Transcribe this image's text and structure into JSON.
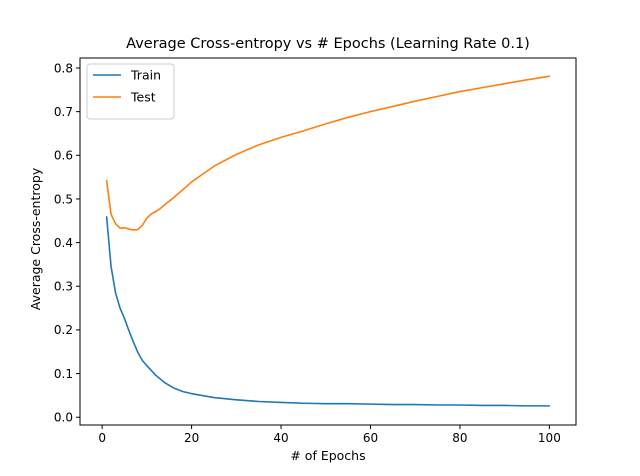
{
  "chart_data": {
    "type": "line",
    "title": "Average Cross-entropy vs # Epochs (Learning Rate 0.1)",
    "xlabel": "# of Epochs",
    "ylabel": "Average Cross-entropy",
    "xlim": [
      -4.95,
      105.95
    ],
    "ylim": [
      -0.0178,
      0.8229
    ],
    "xticks": [
      0,
      20,
      40,
      60,
      80,
      100
    ],
    "yticks": [
      0.0,
      0.1,
      0.2,
      0.3,
      0.4,
      0.5,
      0.6,
      0.7,
      0.8
    ],
    "xtick_labels": [
      "0",
      "20",
      "40",
      "60",
      "80",
      "100"
    ],
    "ytick_labels": [
      "0.0",
      "0.1",
      "0.2",
      "0.3",
      "0.4",
      "0.5",
      "0.6",
      "0.7",
      "0.8"
    ],
    "legend_position": "top-left",
    "grid": false,
    "series": [
      {
        "name": "Train",
        "color": "#1f77b4",
        "x": [
          1,
          2,
          3,
          4,
          5,
          6,
          7,
          8,
          9,
          10,
          12,
          14,
          16,
          18,
          20,
          25,
          30,
          35,
          40,
          45,
          50,
          55,
          60,
          65,
          70,
          75,
          80,
          85,
          90,
          95,
          100
        ],
        "y": [
          0.459,
          0.345,
          0.285,
          0.25,
          0.226,
          0.198,
          0.172,
          0.148,
          0.13,
          0.118,
          0.096,
          0.079,
          0.067,
          0.059,
          0.054,
          0.045,
          0.04,
          0.036,
          0.034,
          0.032,
          0.031,
          0.031,
          0.03,
          0.029,
          0.029,
          0.028,
          0.028,
          0.027,
          0.027,
          0.026,
          0.026
        ]
      },
      {
        "name": "Test",
        "color": "#ff7f0e",
        "x": [
          1,
          2,
          3,
          4,
          5,
          6,
          7,
          8,
          9,
          10,
          11,
          12,
          13,
          14,
          16,
          18,
          20,
          25,
          30,
          35,
          40,
          45,
          50,
          55,
          60,
          65,
          70,
          75,
          80,
          85,
          90,
          95,
          100
        ],
        "y": [
          0.542,
          0.465,
          0.443,
          0.433,
          0.434,
          0.431,
          0.429,
          0.43,
          0.44,
          0.456,
          0.466,
          0.471,
          0.478,
          0.487,
          0.503,
          0.521,
          0.539,
          0.575,
          0.602,
          0.624,
          0.641,
          0.656,
          0.672,
          0.687,
          0.7,
          0.712,
          0.724,
          0.735,
          0.746,
          0.755,
          0.764,
          0.773,
          0.781
        ]
      }
    ]
  }
}
